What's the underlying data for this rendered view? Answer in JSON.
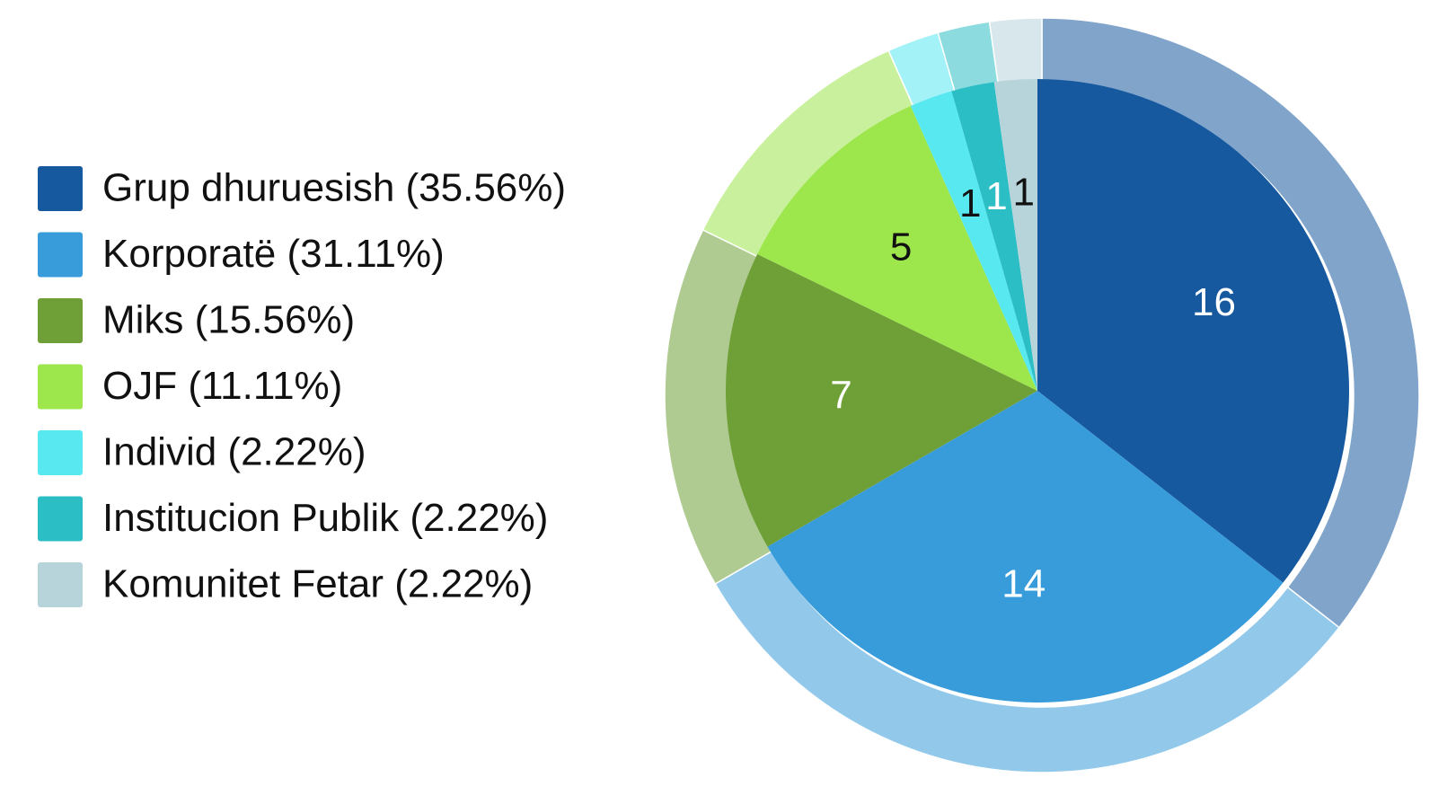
{
  "chart_data": {
    "type": "pie",
    "categories": [
      "Grup dhuruesish (35.56%)",
      "Korporatë (31.11%)",
      "Miks (15.56%)",
      "OJF (11.11%)",
      "Individ (2.22%)",
      "Institucion Publik (2.22%)",
      "Komunitet Fetar (2.22%)"
    ],
    "values": [
      16,
      14,
      7,
      5,
      1,
      1,
      1
    ],
    "colors": [
      "#17599f",
      "#389cdb",
      "#6fa038",
      "#9de64c",
      "#58e8f0",
      "#2bbec4",
      "#b7d4da"
    ],
    "legend": "left"
  }
}
